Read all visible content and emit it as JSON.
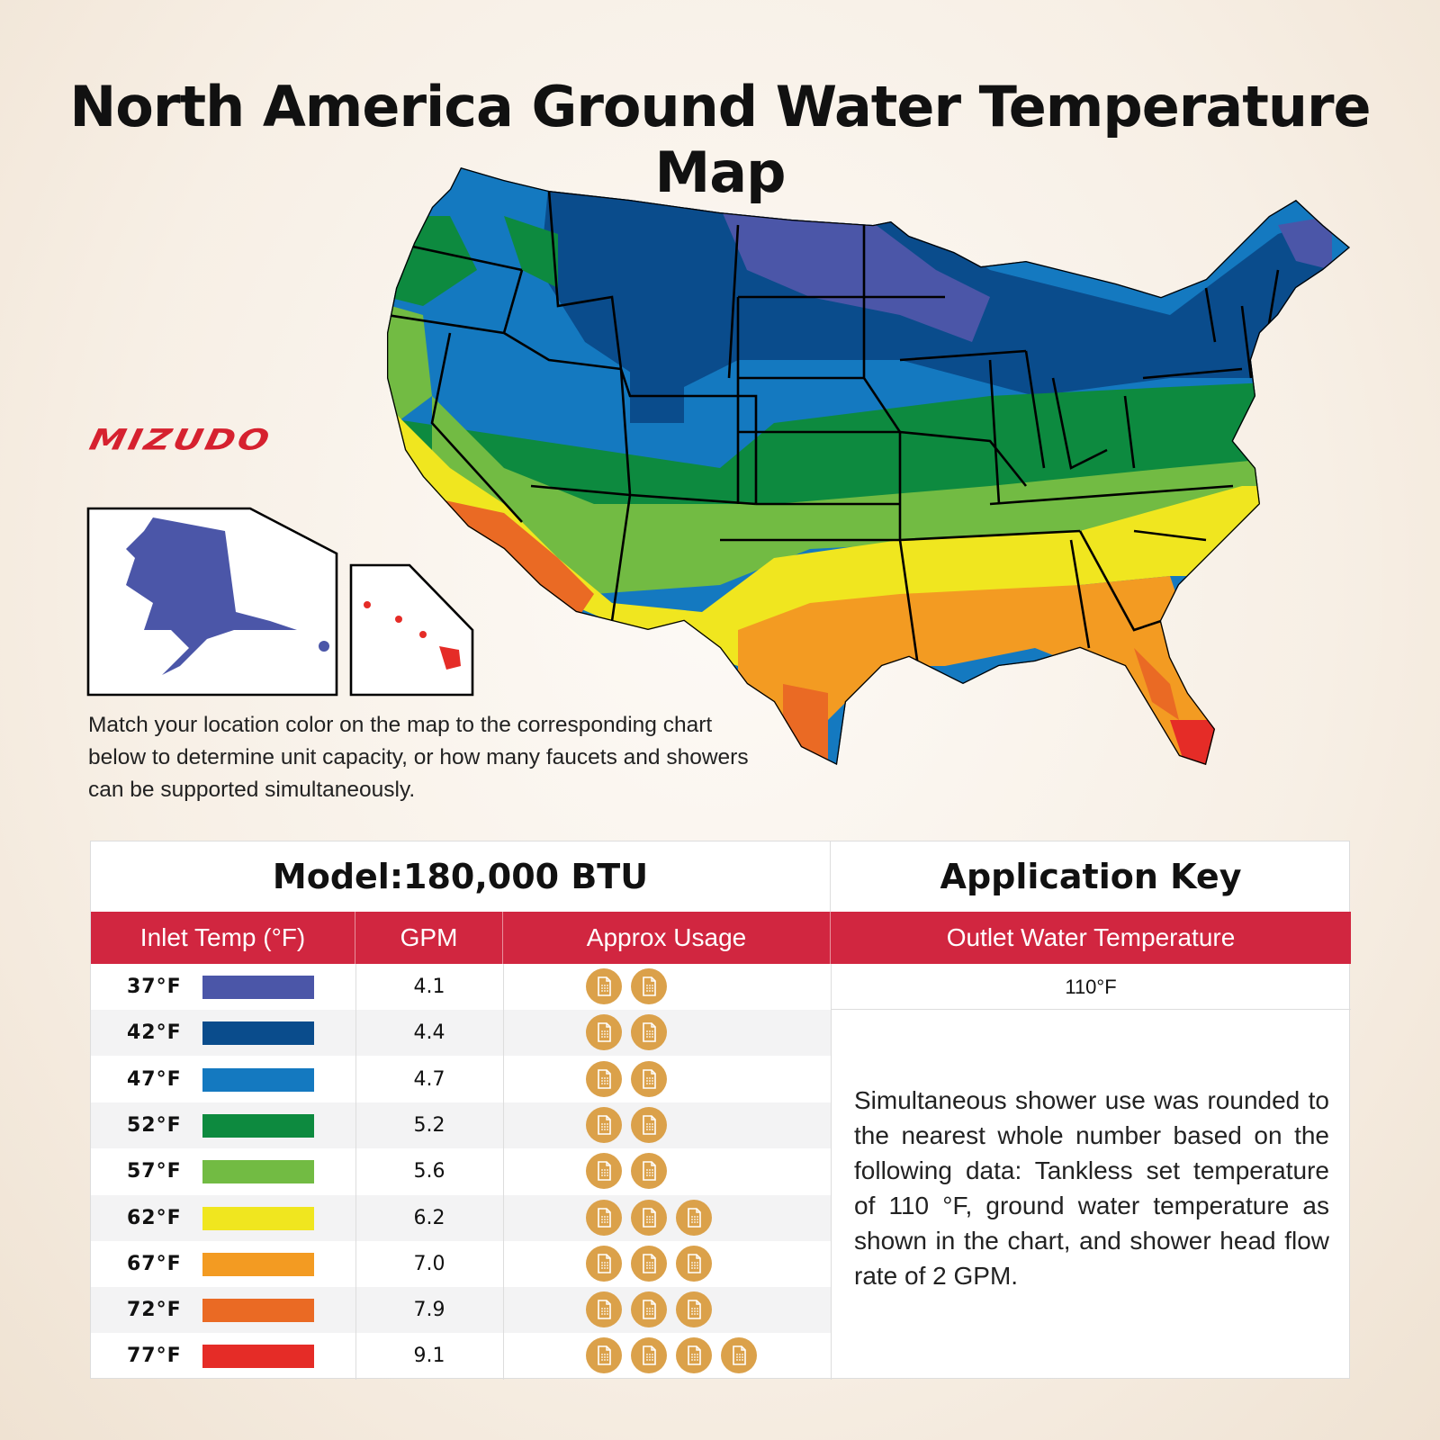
{
  "title": "North America Ground Water Temperature Map",
  "brand": "MIZUDO",
  "intro": "Match your location color on the map to the corresponding chart below to determine unit capacity, or how many faucets and showers can be supported simultaneously.",
  "colors": {
    "accent_red": "#d12640",
    "icon_gold": "#dba14a"
  },
  "table": {
    "model": "Model:180,000 BTU",
    "application_key": "Application Key",
    "headers": {
      "inlet": "Inlet Temp (°F)",
      "gpm": "GPM",
      "usage": "Approx Usage",
      "outlet": "Outlet Water Temperature"
    },
    "outlet_value": "110°F",
    "note": "Simultaneous shower use was rounded to the nearest whole number based on the following data: Tankless set temperature of 110 °F, ground water temperature as shown in the chart, and shower head flow rate of 2 GPM.",
    "usage_icon": "shower-icon",
    "rows": [
      {
        "temp": "37°F",
        "color": "#4b56a8",
        "gpm": "4.1",
        "showers": 2
      },
      {
        "temp": "42°F",
        "color": "#0a4c8c",
        "gpm": "4.4",
        "showers": 2
      },
      {
        "temp": "47°F",
        "color": "#1479c0",
        "gpm": "4.7",
        "showers": 2
      },
      {
        "temp": "52°F",
        "color": "#0d8a3f",
        "gpm": "5.2",
        "showers": 2
      },
      {
        "temp": "57°F",
        "color": "#72bb43",
        "gpm": "5.6",
        "showers": 2
      },
      {
        "temp": "62°F",
        "color": "#f0e61f",
        "gpm": "6.2",
        "showers": 3
      },
      {
        "temp": "67°F",
        "color": "#f39b22",
        "gpm": "7.0",
        "showers": 3
      },
      {
        "temp": "72°F",
        "color": "#ea6a24",
        "gpm": "7.9",
        "showers": 3
      },
      {
        "temp": "77°F",
        "color": "#e52c27",
        "gpm": "9.1",
        "showers": 4
      }
    ]
  }
}
